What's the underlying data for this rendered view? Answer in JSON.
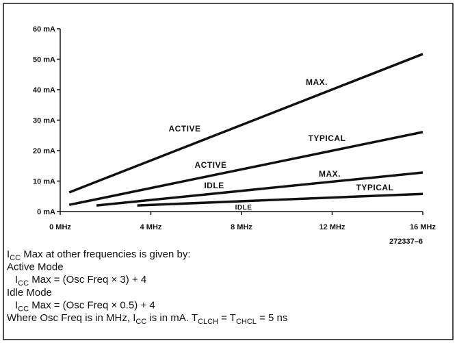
{
  "chart_data": {
    "type": "line",
    "xlim": [
      0,
      16
    ],
    "ylim": [
      0,
      60
    ],
    "xticks": [
      {
        "value": 0,
        "label": "0 MHz"
      },
      {
        "value": 4,
        "label": "4 MHz"
      },
      {
        "value": 8,
        "label": "8 MHz"
      },
      {
        "value": 12,
        "label": "12 MHz"
      },
      {
        "value": 16,
        "label": "16 MHz"
      }
    ],
    "yticks": [
      {
        "value": 0,
        "label": "0 mA"
      },
      {
        "value": 10,
        "label": "10 mA"
      },
      {
        "value": 20,
        "label": "20 mA"
      },
      {
        "value": 30,
        "label": "30 mA"
      },
      {
        "value": 40,
        "label": "40 mA"
      },
      {
        "value": 50,
        "label": "50 mA"
      },
      {
        "value": 60,
        "label": "60 mA"
      }
    ],
    "series": [
      {
        "color": "#111111",
        "x": [
          0.4,
          16
        ],
        "values": [
          6.3,
          51.7
        ]
      },
      {
        "color": "#111111",
        "x": [
          0.4,
          16
        ],
        "values": [
          2.2,
          26.1
        ]
      },
      {
        "color": "#111111",
        "x": [
          1.6,
          16
        ],
        "values": [
          2.0,
          12.8
        ]
      },
      {
        "color": "#111111",
        "x": [
          3.4,
          16
        ],
        "values": [
          2.0,
          5.8
        ]
      }
    ],
    "annotations": [
      "MAX.",
      "ACTIVE",
      "TYPICAL",
      "ACTIVE",
      "MAX.",
      "IDLE",
      "TYPICAL",
      "IDLE"
    ],
    "figure_id": "272337–6",
    "notes": [
      [
        {
          "text": "I"
        },
        {
          "text": "CC",
          "sub": true
        },
        {
          "text": " Max at other frequencies is given by:"
        }
      ],
      [
        {
          "text": "Active Mode"
        }
      ],
      [
        {
          "text": "I"
        },
        {
          "text": "CC",
          "sub": true
        },
        {
          "text": " Max = (Osc Freq × 3) + 4"
        }
      ],
      [
        {
          "text": "Idle Mode"
        }
      ],
      [
        {
          "text": "I"
        },
        {
          "text": "CC",
          "sub": true
        },
        {
          "text": " Max = (Osc Freq × 0.5) + 4"
        }
      ],
      [
        {
          "text": "Where Osc Freq is in MHz, I"
        },
        {
          "text": "CC",
          "sub": true
        },
        {
          "text": " is in mA. T"
        },
        {
          "text": "CLCH",
          "sub": true
        },
        {
          "text": " = T"
        },
        {
          "text": "CHCL",
          "sub": true
        },
        {
          "text": " = 5 ns"
        }
      ]
    ]
  }
}
